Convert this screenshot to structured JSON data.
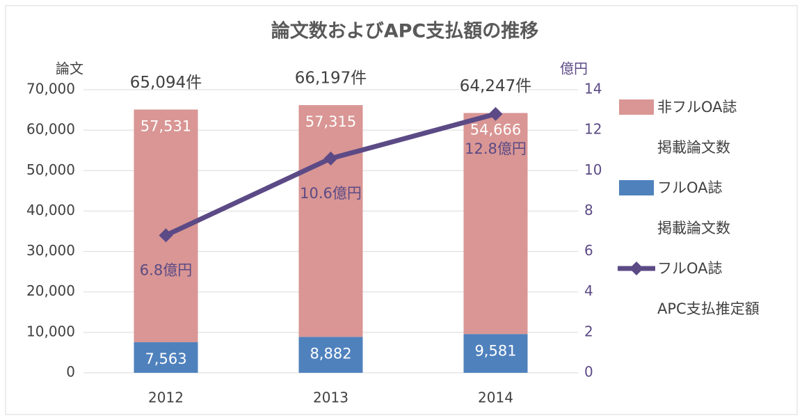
{
  "chart_data": {
    "type": "bar-line",
    "title": "論文数およびAPC支払額の推移",
    "y_label": "論文",
    "y2_label": "億円",
    "categories": [
      "2012",
      "2013",
      "2014"
    ],
    "series": [
      {
        "name": "フルOA誌\n掲載論文数",
        "color": "#4f81bd",
        "type": "bar",
        "values": [
          7563,
          8882,
          9581
        ],
        "value_labels": [
          "7,563",
          "8,882",
          "9,581"
        ]
      },
      {
        "name": "非フルOA誌\n掲載論文数",
        "color": "#d99694",
        "type": "bar",
        "values": [
          57531,
          57315,
          54666
        ],
        "value_labels": [
          "57,531",
          "57,315",
          "54,666"
        ]
      },
      {
        "name": "フルOA誌\nAPC支払推定額",
        "color": "#5b4a85",
        "type": "line",
        "axis": "y2",
        "values": [
          6.8,
          10.6,
          12.8
        ],
        "value_labels": [
          "6.8億円",
          "10.6億円",
          "12.8億円"
        ]
      }
    ],
    "annotations": [
      "65,094件",
      "66,197件",
      "64,247件"
    ],
    "ylim": [
      0,
      70000
    ],
    "yticks": [
      0,
      {
        "value": 10000,
        "label": "10,000"
      },
      {
        "value": 20000,
        "label": "20,000"
      },
      {
        "value": 30000,
        "label": "30,000"
      },
      {
        "value": 40000,
        "label": "40,000"
      },
      {
        "value": 50000,
        "label": "50,000"
      },
      {
        "value": 60000,
        "label": "60,000"
      },
      {
        "value": 70000,
        "label": "70,000"
      }
    ],
    "y2lim": [
      0,
      14
    ],
    "y2ticks": [
      0,
      2,
      4,
      6,
      8,
      10,
      12,
      14
    ],
    "grid": true
  }
}
